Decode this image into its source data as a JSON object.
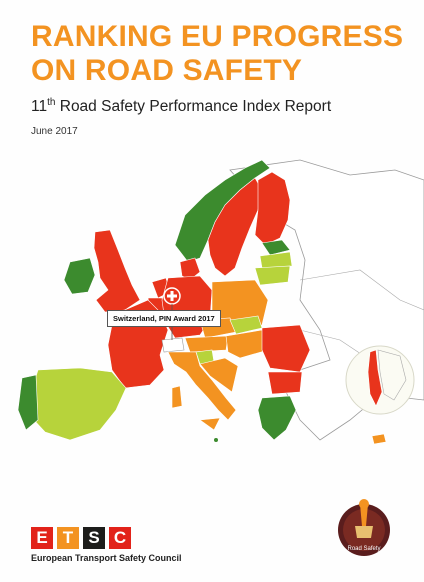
{
  "cover": {
    "title_line1": "RANKING EU PROGRESS",
    "title_line2": "ON ROAD SAFETY",
    "subtitle_number": "11",
    "subtitle_suffix": "th",
    "subtitle_rest": " Road Safety Performance Index Report",
    "date": "June 2017",
    "callout": "Switzerland, PIN Award 2017"
  },
  "logo": {
    "letters": [
      "E",
      "T",
      "S",
      "C"
    ],
    "letter_colors": [
      "#e2231a",
      "#f39321",
      "#1d1d1b",
      "#e2231a"
    ],
    "org_name": "European Transport Safety Council"
  },
  "badge": {
    "text": "Road Safety",
    "icon": "trophy-icon"
  },
  "colors": {
    "title": "#f39321",
    "red": "#e8341c",
    "orange": "#f39321",
    "light_green": "#b7d33b",
    "dark_green": "#3c8b2e",
    "non_eu": "#ffffff"
  }
}
